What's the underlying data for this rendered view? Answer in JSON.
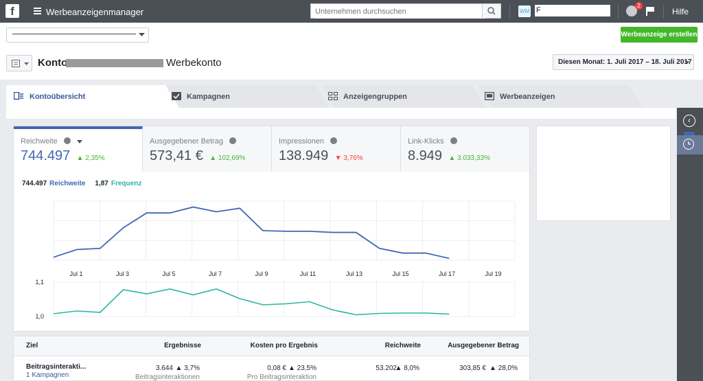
{
  "topbar": {
    "app_title": "Werbeanzeigenmanager",
    "search_placeholder": "Unternehmen durchsuchen",
    "account_initials": "WM",
    "account_name": "F",
    "notification_count": "2",
    "help_label": "Hilfe"
  },
  "subbar": {
    "create_ad_label": "Werbeanzeige erstellen"
  },
  "header": {
    "konto_label": "Konto:",
    "konto_suffix": "Werbekonto",
    "date_range": "Diesen Monat: 1. Juli 2017 – 18. Juli 2017"
  },
  "tabs": [
    {
      "label": "Kontoübersicht",
      "icon": "overview-icon"
    },
    {
      "label": "Kampagnen",
      "icon": "checkbox-icon"
    },
    {
      "label": "Anzeigengruppen",
      "icon": "grid-icon"
    },
    {
      "label": "Werbeanzeigen",
      "icon": "ad-icon"
    }
  ],
  "metrics": [
    {
      "label": "Reichweite",
      "value": "744.497",
      "change": "2,35%",
      "direction": "up"
    },
    {
      "label": "Ausgegebener Betrag",
      "value": "573,41 €",
      "change": "102,69%",
      "direction": "up"
    },
    {
      "label": "Impressionen",
      "value": "138.949",
      "change": "3,76%",
      "direction": "down"
    },
    {
      "label": "Link-Klicks",
      "value": "8.949",
      "change": "3.033,33%",
      "direction": "up"
    }
  ],
  "legend": {
    "reach_value": "744.497",
    "reach_label": "Reichweite",
    "freq_value": "1,87",
    "freq_label": "Frequenz"
  },
  "chart_data": {
    "type": "line",
    "x_ticks": [
      "Jul 1",
      "Jul 3",
      "Jul 5",
      "Jul 7",
      "Jul 9",
      "Jul 11",
      "Jul 13",
      "Jul 15",
      "Jul 17",
      "Jul 19"
    ],
    "x": [
      0,
      1,
      2,
      3,
      4,
      5,
      6,
      7,
      8,
      9,
      10,
      11,
      12,
      13,
      14,
      15,
      16,
      17
    ],
    "series": [
      {
        "name": "Reichweite",
        "color": "#4267b2",
        "values": [
          0.05,
          0.18,
          0.2,
          0.55,
          0.8,
          0.8,
          0.9,
          0.82,
          0.88,
          0.5,
          0.49,
          0.49,
          0.47,
          0.47,
          0.2,
          0.12,
          0.12,
          0.03
        ]
      },
      {
        "name": "Frequenz",
        "color": "#2bb5a0",
        "y_ticks": [
          "1,1",
          "1,0"
        ],
        "values": [
          1.008,
          1.016,
          1.012,
          1.078,
          1.066,
          1.08,
          1.063,
          1.08,
          1.052,
          1.034,
          1.037,
          1.043,
          1.019,
          1.005,
          1.009,
          1.01,
          1.01,
          1.007
        ]
      }
    ]
  },
  "table": {
    "headers": [
      "Ziel",
      "Ergebnisse",
      "Kosten pro Ergebnis",
      "Reichweite",
      "Ausgegebener Betrag"
    ],
    "row": {
      "goal": "Beitragsinterakti...",
      "campaigns_link": "1 Kampagnen",
      "results": "3.644",
      "results_change": "3,7%",
      "results_sub": "Beitragsinteraktionen",
      "cost": "0,08 €",
      "cost_change": "23,5%",
      "cost_sub": "Pro Beitragsinteraktion",
      "reach": "53.202",
      "reach_change": "8,0%",
      "spent": "303,85 €",
      "spent_change": "28,0%"
    }
  }
}
